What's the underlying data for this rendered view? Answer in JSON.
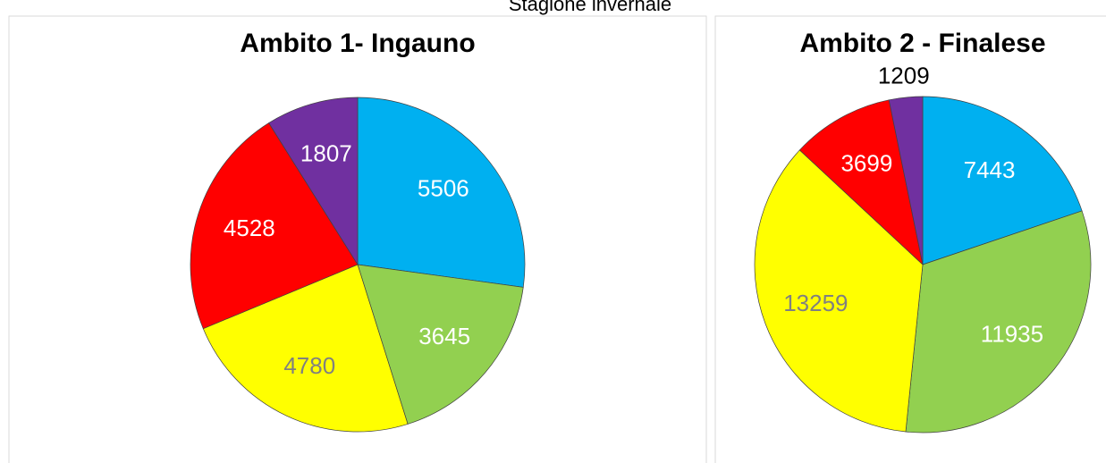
{
  "title": "Stagione invernale",
  "chart_data": [
    {
      "type": "pie",
      "title": "Ambito 1- Ingauno",
      "values": [
        5506,
        3645,
        4780,
        4528,
        1807
      ],
      "colors": [
        "#00b0f0",
        "#92d050",
        "#ffff00",
        "#ff0000",
        "#7030a0"
      ],
      "label_colors": [
        "#ffffff",
        "#ffffff",
        "#808080",
        "#ffffff",
        "#ffffff"
      ]
    },
    {
      "type": "pie",
      "title": "Ambito 2 - Finalese",
      "values": [
        7443,
        11935,
        13259,
        3699,
        1209
      ],
      "colors": [
        "#00b0f0",
        "#92d050",
        "#ffff00",
        "#ff0000",
        "#7030a0"
      ],
      "label_colors": [
        "#ffffff",
        "#ffffff",
        "#808080",
        "#ffffff",
        "#404040"
      ]
    }
  ]
}
